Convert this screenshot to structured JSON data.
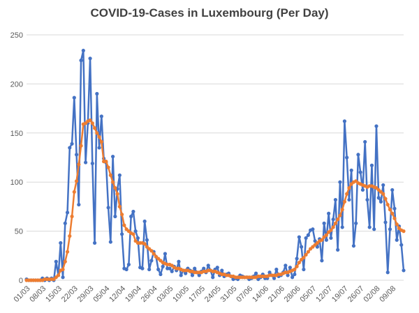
{
  "chart_data": {
    "type": "line",
    "title": "COVID-19-Cases in Luxembourg (Per Day)",
    "xlabel": "",
    "ylabel": "",
    "ylim": [
      0,
      250
    ],
    "y_ticks": [
      0,
      50,
      100,
      150,
      200,
      250
    ],
    "grid": true,
    "legend": "none",
    "x_tick_labels": [
      "01/03",
      "08/03",
      "15/03",
      "22/03",
      "29/03",
      "05/04",
      "12/04",
      "19/04",
      "26/04",
      "03/05",
      "10/05",
      "17/05",
      "24/05",
      "31/05",
      "07/06",
      "14/06",
      "21/06",
      "28/06",
      "05/07",
      "12/07",
      "19/07",
      "26/07",
      "02/08",
      "09/08"
    ],
    "colors": {
      "daily": "#4472C4",
      "average": "#ED7D31",
      "grid": "#d9d9d9"
    },
    "series": [
      {
        "key": "daily",
        "values": [
          1,
          0,
          0,
          0,
          0,
          0,
          0,
          2,
          0,
          2,
          0,
          2,
          0,
          19,
          5,
          38,
          3,
          58,
          69,
          135,
          139,
          186,
          128,
          77,
          224,
          234,
          120,
          160,
          226,
          119,
          38,
          190,
          135,
          167,
          124,
          120,
          74,
          39,
          126,
          65,
          93,
          107,
          47,
          12,
          11,
          16,
          65,
          70,
          50,
          43,
          13,
          12,
          60,
          41,
          11,
          20,
          29,
          24,
          11,
          6,
          14,
          27,
          12,
          12,
          9,
          14,
          10,
          19,
          5,
          10,
          7,
          12,
          10,
          5,
          12,
          8,
          5,
          9,
          12,
          8,
          15,
          10,
          3,
          11,
          13,
          5,
          10,
          4,
          6,
          7,
          4,
          1,
          2,
          1,
          5,
          4,
          3,
          3,
          1,
          2,
          4,
          7,
          1,
          3,
          6,
          2,
          2,
          8,
          5,
          2,
          11,
          4,
          5,
          8,
          15,
          5,
          13,
          3,
          6,
          22,
          44,
          34,
          11,
          43,
          46,
          51,
          52,
          40,
          34,
          42,
          20,
          58,
          41,
          68,
          43,
          62,
          82,
          31,
          100,
          54,
          162,
          125,
          82,
          112,
          35,
          58,
          128,
          110,
          92,
          141,
          82,
          54,
          117,
          52,
          157,
          84,
          80,
          97,
          59,
          8,
          52,
          92,
          73,
          41,
          55,
          36,
          10
        ],
        "average_note": ""
      },
      {
        "key": "average",
        "values": [
          0,
          0,
          0,
          0,
          0,
          0,
          0,
          0,
          1,
          1,
          1,
          1,
          1,
          3,
          5,
          10,
          11,
          19,
          29,
          45,
          65,
          90,
          101,
          118,
          137,
          159,
          160,
          162,
          163,
          160,
          155,
          150,
          146,
          141,
          121,
          121,
          115,
          107,
          100,
          94,
          88,
          75,
          67,
          56,
          52,
          50,
          48,
          47,
          40,
          38,
          38,
          38,
          37,
          34,
          32,
          30,
          27,
          24,
          22,
          20,
          18,
          17,
          16,
          16,
          15,
          13,
          12,
          12,
          11,
          10,
          10,
          10,
          9,
          9,
          8,
          8,
          8,
          8,
          9,
          9,
          10,
          10,
          9,
          9,
          8,
          7,
          6,
          6,
          5,
          5,
          4,
          4,
          3,
          3,
          3,
          3,
          3,
          3,
          3,
          3,
          3,
          3,
          4,
          4,
          4,
          4,
          4,
          5,
          5,
          5,
          5,
          6,
          6,
          7,
          8,
          8,
          9,
          10,
          11,
          14,
          18,
          21,
          23,
          26,
          29,
          32,
          34,
          36,
          38,
          40,
          41,
          44,
          46,
          49,
          51,
          54,
          58,
          62,
          66,
          72,
          80,
          88,
          94,
          98,
          100,
          101,
          99,
          98,
          97,
          96,
          95,
          96,
          96,
          95,
          94,
          92,
          90,
          88,
          83,
          77,
          72,
          68,
          63,
          57,
          53,
          51,
          50
        ],
        "average_note": ""
      }
    ]
  }
}
